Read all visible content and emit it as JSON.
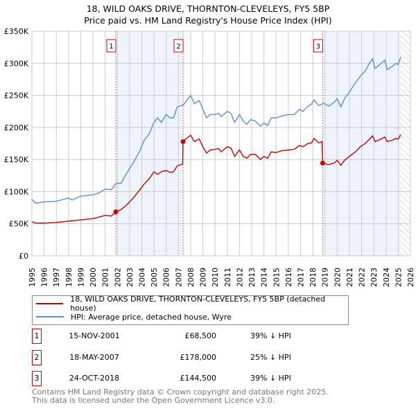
{
  "chart_data": {
    "type": "line",
    "title": "18, WILD OAKS DRIVE, THORNTON-CLEVELEYS, FY5 5BP",
    "subtitle": "Price paid vs. HM Land Registry's House Price Index (HPI)",
    "xlim": [
      1995,
      2026
    ],
    "ylim": [
      0,
      350000
    ],
    "yticks": [
      {
        "v": 0,
        "label": "£0"
      },
      {
        "v": 50000,
        "label": "£50K"
      },
      {
        "v": 100000,
        "label": "£100K"
      },
      {
        "v": 150000,
        "label": "£150K"
      },
      {
        "v": 200000,
        "label": "£200K"
      },
      {
        "v": 250000,
        "label": "£250K"
      },
      {
        "v": 300000,
        "label": "£300K"
      },
      {
        "v": 350000,
        "label": "£350K"
      }
    ],
    "xticks": [
      "1995",
      "1996",
      "1997",
      "1998",
      "1999",
      "2000",
      "2001",
      "2002",
      "2003",
      "2004",
      "2005",
      "2006",
      "2007",
      "2008",
      "2009",
      "2010",
      "2011",
      "2012",
      "2013",
      "2014",
      "2015",
      "2016",
      "2017",
      "2018",
      "2019",
      "2020",
      "2021",
      "2022",
      "2023",
      "2024",
      "2025",
      "2026"
    ],
    "grid": true,
    "shaded_ranges": [
      [
        2001.87,
        2007.38
      ],
      [
        2018.81,
        2025.2
      ]
    ],
    "hatched_range": [
      2025.2,
      2026
    ],
    "series": [
      {
        "name": "18, WILD OAKS DRIVE, THORNTON-CLEVELEYS, FY5 5BP (detached house)",
        "color": "#cc0000",
        "points": [
          [
            1995,
            53
          ],
          [
            1995.3,
            51
          ],
          [
            1996,
            51
          ],
          [
            1997,
            52
          ],
          [
            1998,
            54
          ],
          [
            1999,
            56
          ],
          [
            2000,
            58
          ],
          [
            2001,
            63
          ],
          [
            2001.5,
            62
          ],
          [
            2001.87,
            68.5
          ],
          [
            2002.3,
            72
          ],
          [
            2002.8,
            80
          ],
          [
            2003.3,
            90
          ],
          [
            2003.8,
            102
          ],
          [
            2004.2,
            112
          ],
          [
            2004.6,
            120
          ],
          [
            2005,
            131
          ],
          [
            2005.3,
            127
          ],
          [
            2005.6,
            131
          ],
          [
            2006,
            133
          ],
          [
            2006.3,
            130
          ],
          [
            2006.6,
            131
          ],
          [
            2006.9,
            140
          ],
          [
            2007.35,
            143
          ],
          [
            2007.38,
            178
          ],
          [
            2007.6,
            182
          ],
          [
            2008,
            188
          ],
          [
            2008.3,
            178
          ],
          [
            2008.7,
            182
          ],
          [
            2009,
            170
          ],
          [
            2009.3,
            160
          ],
          [
            2009.6,
            165
          ],
          [
            2010,
            166
          ],
          [
            2010.3,
            167
          ],
          [
            2010.5,
            162
          ],
          [
            2011,
            170
          ],
          [
            2011.3,
            168
          ],
          [
            2011.6,
            155
          ],
          [
            2012,
            165
          ],
          [
            2012.3,
            155
          ],
          [
            2012.6,
            152
          ],
          [
            2012.9,
            158
          ],
          [
            2013.3,
            158
          ],
          [
            2013.7,
            150
          ],
          [
            2014,
            155
          ],
          [
            2014.3,
            152
          ],
          [
            2014.6,
            162
          ],
          [
            2015,
            161
          ],
          [
            2015.5,
            164
          ],
          [
            2016,
            165
          ],
          [
            2016.5,
            166
          ],
          [
            2016.9,
            172
          ],
          [
            2017.2,
            170
          ],
          [
            2017.6,
            175
          ],
          [
            2017.9,
            176
          ],
          [
            2018.1,
            183
          ],
          [
            2018.5,
            176
          ],
          [
            2018.75,
            178
          ],
          [
            2018.81,
            144.5
          ],
          [
            2019.3,
            142
          ],
          [
            2019.8,
            145
          ],
          [
            2020,
            149
          ],
          [
            2020.3,
            141
          ],
          [
            2020.6,
            149
          ],
          [
            2021,
            155
          ],
          [
            2021.5,
            162
          ],
          [
            2021.9,
            170
          ],
          [
            2022.3,
            175
          ],
          [
            2022.7,
            183
          ],
          [
            2022.9,
            187
          ],
          [
            2023.1,
            178
          ],
          [
            2023.5,
            181
          ],
          [
            2023.9,
            185
          ],
          [
            2024.1,
            178
          ],
          [
            2024.5,
            180
          ],
          [
            2024.8,
            183
          ],
          [
            2025,
            182
          ],
          [
            2025.2,
            189
          ]
        ]
      },
      {
        "name": "HPI: Average price, detached house, Wyre",
        "color": "#5b8fd0",
        "points": [
          [
            1995,
            88
          ],
          [
            1995.3,
            82
          ],
          [
            1996,
            84
          ],
          [
            1997,
            85
          ],
          [
            1998,
            90
          ],
          [
            1998.3,
            87
          ],
          [
            1999,
            93
          ],
          [
            2000,
            95
          ],
          [
            2000.5,
            98
          ],
          [
            2001,
            104
          ],
          [
            2001.5,
            103
          ],
          [
            2001.9,
            113
          ],
          [
            2002.3,
            113
          ],
          [
            2002.8,
            130
          ],
          [
            2003.3,
            145
          ],
          [
            2003.8,
            162
          ],
          [
            2004.2,
            180
          ],
          [
            2004.6,
            190
          ],
          [
            2005,
            208
          ],
          [
            2005.3,
            215
          ],
          [
            2005.6,
            208
          ],
          [
            2006,
            220
          ],
          [
            2006.3,
            215
          ],
          [
            2006.6,
            215
          ],
          [
            2006.9,
            232
          ],
          [
            2007.4,
            235
          ],
          [
            2007.8,
            245
          ],
          [
            2008,
            250
          ],
          [
            2008.3,
            237
          ],
          [
            2008.7,
            242
          ],
          [
            2009,
            228
          ],
          [
            2009.3,
            215
          ],
          [
            2009.6,
            220
          ],
          [
            2010,
            220
          ],
          [
            2010.3,
            222
          ],
          [
            2010.5,
            217
          ],
          [
            2011,
            225
          ],
          [
            2011.3,
            222
          ],
          [
            2011.6,
            208
          ],
          [
            2012,
            220
          ],
          [
            2012.3,
            210
          ],
          [
            2012.6,
            205
          ],
          [
            2012.9,
            212
          ],
          [
            2013.3,
            210
          ],
          [
            2013.7,
            202
          ],
          [
            2014,
            207
          ],
          [
            2014.3,
            203
          ],
          [
            2014.6,
            215
          ],
          [
            2015,
            215
          ],
          [
            2015.5,
            218
          ],
          [
            2016,
            220
          ],
          [
            2016.5,
            220
          ],
          [
            2016.9,
            228
          ],
          [
            2017.2,
            225
          ],
          [
            2017.6,
            233
          ],
          [
            2017.9,
            236
          ],
          [
            2018.1,
            243
          ],
          [
            2018.5,
            234
          ],
          [
            2018.9,
            238
          ],
          [
            2019.3,
            233
          ],
          [
            2019.8,
            240
          ],
          [
            2020,
            245
          ],
          [
            2020.3,
            232
          ],
          [
            2020.6,
            245
          ],
          [
            2021,
            255
          ],
          [
            2021.5,
            270
          ],
          [
            2021.9,
            280
          ],
          [
            2022.3,
            288
          ],
          [
            2022.7,
            302
          ],
          [
            2022.9,
            307
          ],
          [
            2023.1,
            292
          ],
          [
            2023.5,
            298
          ],
          [
            2023.9,
            305
          ],
          [
            2024.1,
            290
          ],
          [
            2024.5,
            295
          ],
          [
            2024.8,
            300
          ],
          [
            2025,
            298
          ],
          [
            2025.2,
            310
          ]
        ]
      }
    ],
    "sales": [
      {
        "id": "1",
        "x": 2001.87,
        "price": 68.5
      },
      {
        "id": "2",
        "x": 2007.38,
        "price": 178
      },
      {
        "id": "3",
        "x": 2018.81,
        "price": 144.5
      }
    ],
    "value_unit": "thousands GBP"
  },
  "title_line1": "18, WILD OAKS DRIVE, THORNTON-CLEVELEYS, FY5 5BP",
  "title_line2": "Price paid vs. HM Land Registry's House Price Index (HPI)",
  "legend": [
    "18, WILD OAKS DRIVE, THORNTON-CLEVELEYS, FY5 5BP (detached house)",
    "HPI: Average price, detached house, Wyre"
  ],
  "transactions": [
    {
      "num": "1",
      "date": "15-NOV-2001",
      "price": "£68,500",
      "pct": "39% ↓ HPI"
    },
    {
      "num": "2",
      "date": "18-MAY-2007",
      "price": "£178,000",
      "pct": "25% ↓ HPI"
    },
    {
      "num": "3",
      "date": "24-OCT-2018",
      "price": "£144,500",
      "pct": "39% ↓ HPI"
    }
  ],
  "footer": [
    "Contains HM Land Registry data © Crown copyright and database right 2025.",
    "This data is licensed under the Open Government Licence v3.0."
  ]
}
